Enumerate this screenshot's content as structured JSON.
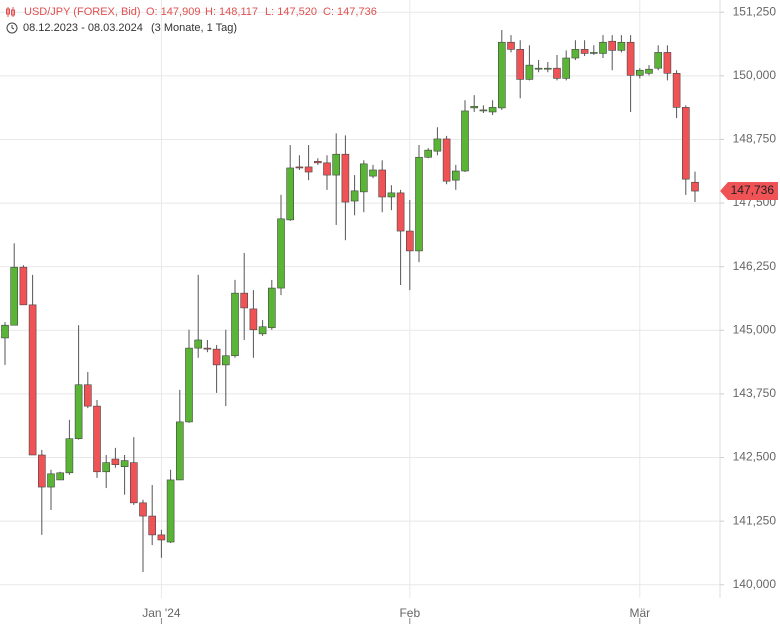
{
  "chart_data": {
    "type": "candlestick",
    "header": {
      "instrument": "USD/JPY (FOREX, Bid)",
      "ohlc": [
        "O: 147,909",
        "H: 148,117",
        "L: 147,520",
        "C: 147,736"
      ],
      "range": "08.12.2023 - 08.03.2024",
      "period": "(3 Monate, 1 Tag)"
    },
    "categories": [
      null,
      null,
      null,
      null,
      null,
      null,
      null,
      null,
      null,
      null,
      null,
      null,
      null,
      null,
      null,
      null,
      null,
      "Jan '24",
      null,
      null,
      null,
      null,
      null,
      null,
      null,
      null,
      null,
      null,
      null,
      null,
      null,
      null,
      null,
      null,
      null,
      null,
      null,
      null,
      null,
      null,
      null,
      null,
      null,
      null,
      "Feb",
      null,
      null,
      null,
      null,
      null,
      null,
      null,
      null,
      null,
      null,
      null,
      null,
      null,
      null,
      null,
      null,
      null,
      null,
      null,
      null,
      null,
      null,
      null,
      null,
      "Mär",
      null,
      null,
      null,
      null,
      null,
      null
    ],
    "open": [
      144.85,
      145.1,
      146.24,
      145.5,
      142.55,
      141.92,
      142.06,
      142.2,
      142.87,
      143.93,
      143.51,
      142.22,
      142.47,
      142.32,
      142.4,
      141.61,
      141.35,
      140.98,
      140.84,
      142.06,
      143.2,
      144.65,
      144.65,
      144.63,
      144.32,
      144.5,
      145.73,
      145.42,
      144.93,
      145.05,
      145.83,
      147.17,
      148.21,
      148.21,
      148.32,
      148.29,
      148.05,
      148.46,
      147.54,
      147.72,
      148.03,
      148.15,
      147.62,
      147.7,
      146.95,
      146.56,
      148.4,
      148.52,
      148.76,
      147.95,
      148.13,
      149.37,
      149.31,
      149.29,
      149.37,
      150.66,
      150.52,
      149.93,
      150.13,
      150.13,
      150.15,
      149.95,
      150.35,
      150.52,
      150.44,
      150.44,
      150.68,
      150.5,
      150.66,
      150.01,
      150.05,
      150.15,
      150.46,
      150.05,
      149.38,
      147.909
    ],
    "high": [
      145.16,
      146.71,
      146.28,
      146.09,
      142.65,
      142.26,
      142.22,
      143.24,
      145.1,
      144.18,
      143.63,
      142.55,
      142.69,
      142.55,
      142.9,
      141.67,
      141.96,
      141.08,
      142.26,
      143.83,
      145.01,
      146.09,
      144.81,
      144.71,
      145.01,
      145.99,
      146.52,
      145.79,
      145.2,
      145.99,
      147.66,
      148.64,
      148.44,
      148.64,
      148.38,
      148.44,
      148.87,
      148.83,
      148.05,
      148.34,
      148.25,
      148.34,
      147.85,
      147.76,
      147.56,
      148.64,
      148.58,
      148.99,
      148.82,
      148.25,
      149.52,
      149.62,
      149.42,
      149.52,
      150.9,
      150.8,
      150.7,
      150.6,
      150.31,
      150.27,
      150.41,
      150.5,
      150.7,
      150.7,
      150.6,
      150.8,
      150.8,
      150.8,
      150.8,
      150.15,
      150.21,
      150.6,
      150.6,
      150.11,
      149.42,
      148.117
    ],
    "low": [
      144.32,
      145.1,
      145.5,
      142.55,
      140.98,
      141.47,
      142.06,
      142.16,
      142.85,
      143.47,
      142.1,
      141.9,
      142.3,
      141.77,
      141.57,
      140.25,
      140.78,
      140.53,
      140.82,
      142.06,
      143.18,
      144.46,
      144.57,
      143.77,
      143.51,
      144.46,
      144.81,
      144.46,
      144.89,
      145.01,
      145.69,
      147.15,
      148.15,
      147.95,
      148.25,
      147.76,
      147.07,
      146.77,
      147.26,
      147.32,
      147.99,
      147.32,
      147.36,
      145.89,
      145.79,
      146.34,
      148.38,
      148.44,
      147.87,
      147.76,
      148.11,
      149.29,
      149.27,
      149.23,
      149.33,
      150.46,
      149.56,
      149.91,
      150.07,
      150.07,
      149.91,
      149.91,
      150.31,
      150.39,
      150.41,
      150.35,
      150.11,
      150.46,
      149.29,
      149.95,
      150.01,
      150.11,
      149.91,
      149.17,
      147.66,
      147.52
    ],
    "close": [
      145.1,
      146.24,
      145.5,
      142.55,
      141.92,
      142.18,
      142.2,
      142.87,
      143.93,
      143.51,
      142.22,
      142.4,
      142.36,
      142.44,
      141.61,
      141.35,
      140.98,
      140.88,
      142.06,
      143.2,
      144.65,
      144.81,
      144.63,
      144.32,
      144.5,
      145.73,
      145.44,
      145.01,
      145.07,
      145.83,
      147.19,
      148.19,
      148.19,
      148.11,
      148.29,
      148.05,
      148.46,
      147.52,
      147.74,
      148.27,
      148.15,
      147.62,
      147.7,
      146.95,
      146.56,
      148.4,
      148.54,
      148.76,
      147.93,
      148.13,
      149.31,
      149.4,
      149.33,
      149.38,
      150.66,
      150.52,
      149.93,
      150.21,
      150.15,
      150.15,
      149.95,
      150.35,
      150.52,
      150.44,
      150.46,
      150.66,
      150.5,
      150.66,
      150.01,
      150.11,
      150.13,
      150.46,
      150.05,
      149.38,
      147.97,
      147.736
    ],
    "up_color": "#5ab536",
    "down_color": "#f05356",
    "last_price": {
      "value": 147.736,
      "label": "147,736"
    },
    "ylim": [
      139.74,
      151.49
    ],
    "yticks": [
      {
        "value": 140,
        "label": "140,000"
      },
      {
        "value": 141.25,
        "label": "141,250"
      },
      {
        "value": 142.5,
        "label": "142,500"
      },
      {
        "value": 143.75,
        "label": "143,750"
      },
      {
        "value": 145,
        "label": "145,000"
      },
      {
        "value": 146.25,
        "label": "146,250"
      },
      {
        "value": 147.5,
        "label": "147,500"
      },
      {
        "value": 148.75,
        "label": "148,750"
      },
      {
        "value": 150,
        "label": "150,000"
      },
      {
        "value": 151.25,
        "label": "151,250"
      }
    ],
    "grid": true
  }
}
